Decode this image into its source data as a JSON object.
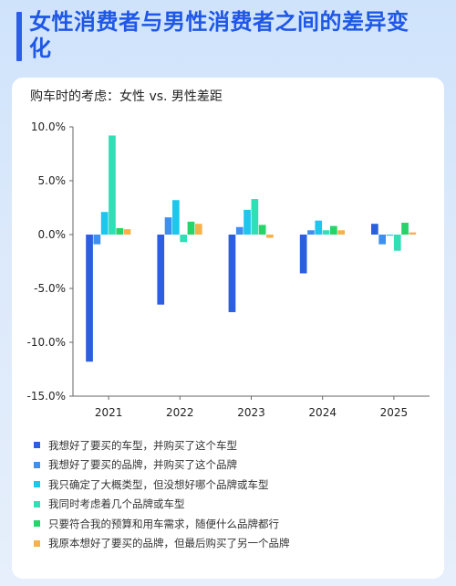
{
  "page": {
    "title": "女性消费者与男性消费者之间的差异变化",
    "subtitle": "购车时的考虑：女性 vs. 男性差距"
  },
  "chart_data": {
    "type": "bar",
    "title": "购车时的考虑：女性 vs. 男性差距",
    "categories": [
      "2021",
      "2022",
      "2023",
      "2024",
      "2025"
    ],
    "ylim": [
      -15,
      10
    ],
    "yticks": [
      "10.0%",
      "5.0%",
      "0.0%",
      "-5.0%",
      "-10.0%",
      "-15.0%"
    ],
    "ytick_values": [
      10,
      5,
      0,
      -5,
      -10,
      -15
    ],
    "grid": false,
    "legend_position": "bottom",
    "series": [
      {
        "name": "我想好了要买的车型，并购买了这个车型",
        "color": "#2b5fe0",
        "values": [
          -11.8,
          -6.5,
          -7.2,
          -3.6,
          1.0
        ]
      },
      {
        "name": "我想好了要买的品牌，并购买了这个品牌",
        "color": "#3d8ff0",
        "values": [
          -0.9,
          1.6,
          0.7,
          0.4,
          -0.9
        ]
      },
      {
        "name": "我只确定了大概类型，但没想好哪个品牌或车型",
        "color": "#1ec6ee",
        "values": [
          2.1,
          3.2,
          2.3,
          1.3,
          -0.1
        ]
      },
      {
        "name": "我同时考虑着几个品牌或车型",
        "color": "#2fe0b6",
        "values": [
          9.2,
          -0.7,
          3.3,
          0.4,
          -1.5
        ]
      },
      {
        "name": "只要符合我的预算和用车需求，随便什么品牌都行",
        "color": "#26d46a",
        "values": [
          0.6,
          1.2,
          0.9,
          0.8,
          1.1
        ]
      },
      {
        "name": "我原本想好了要买的品牌，但最后购买了另一个品牌",
        "color": "#f5b14a",
        "values": [
          0.5,
          1.0,
          -0.3,
          0.4,
          0.2
        ]
      }
    ]
  }
}
